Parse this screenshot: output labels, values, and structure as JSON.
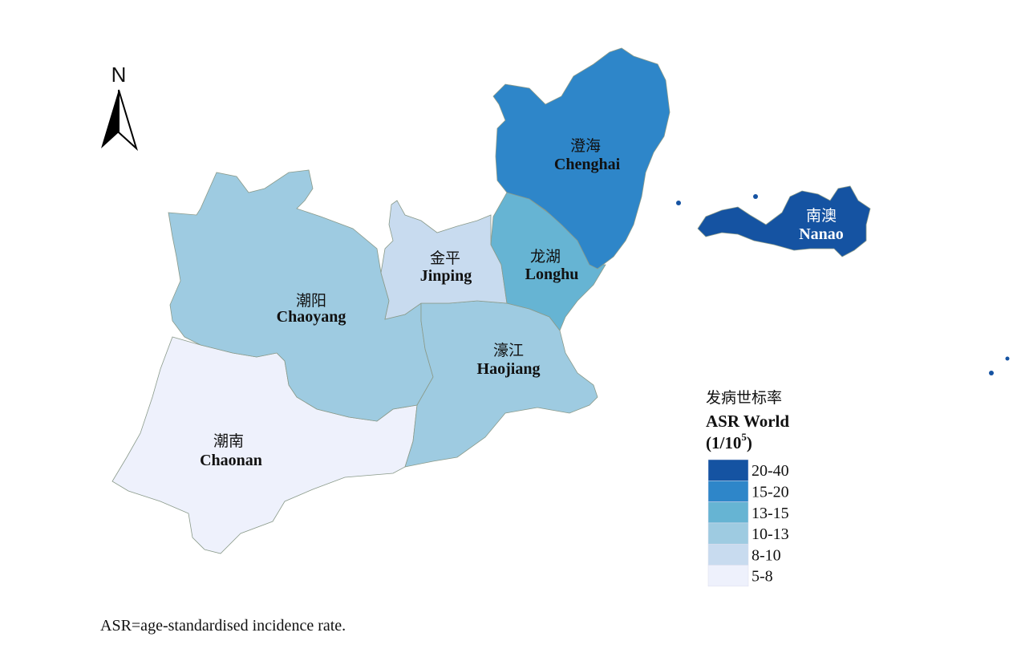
{
  "north_label": "N",
  "regions": [
    {
      "name_zh": "澄海",
      "name_en": "Chenghai",
      "color": "#2e86c9"
    },
    {
      "name_zh": "金平",
      "name_en": "Jinping",
      "color": "#c8dbef"
    },
    {
      "name_zh": "龙湖",
      "name_en": "Longhu",
      "color": "#66b4d3"
    },
    {
      "name_zh": "濠江",
      "name_en": "Haojiang",
      "color": "#9ecbe1"
    },
    {
      "name_zh": "潮阳",
      "name_en": "Chaoyang",
      "color": "#9ecbe1"
    },
    {
      "name_zh": "潮南",
      "name_en": "Chaonan",
      "color": "#eef1fc"
    },
    {
      "name_zh": "南澳",
      "name_en": "Nanao",
      "color": "#1553a2"
    }
  ],
  "legend": {
    "title_zh": "发病世标率",
    "title_en": "ASR World",
    "unit_base": "(1/10",
    "unit_exponent": "5",
    "unit_close": ")",
    "items": [
      {
        "label": "20-40",
        "color": "#1553a2"
      },
      {
        "label": "15-20",
        "color": "#2e86c9"
      },
      {
        "label": "13-15",
        "color": "#66b4d3"
      },
      {
        "label": "10-13",
        "color": "#9ecbe1"
      },
      {
        "label": "8-10",
        "color": "#c8dbef"
      },
      {
        "label": "5-8",
        "color": "#eef1fc"
      }
    ]
  },
  "footnote": "ASR=age-standardised incidence rate."
}
